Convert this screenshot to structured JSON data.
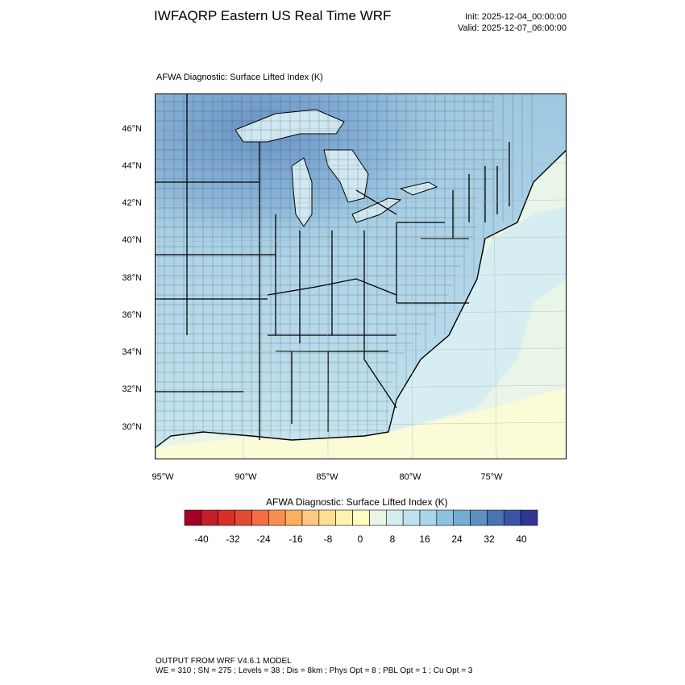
{
  "header": {
    "title": "IWFAQRP Eastern US Real Time WRF",
    "init": "Init: 2025-12-04_00:00:00",
    "valid": "Valid: 2025-12-07_06:00:00"
  },
  "map": {
    "field_label": "AFWA Diagnostic: Surface Lifted Index   (K)",
    "lat_labels": [
      "46°N",
      "44°N",
      "42°N",
      "40°N",
      "38°N",
      "36°N",
      "34°N",
      "32°N",
      "30°N"
    ],
    "lon_labels": [
      "95°W",
      "90°W",
      "85°W",
      "80°W",
      "75°W"
    ]
  },
  "colorbar": {
    "title": "AFWA Diagnostic: Surface Lifted Index  (K)",
    "tick_labels": [
      "-40",
      "-32",
      "-24",
      "-16",
      "-8",
      "0",
      "8",
      "16",
      "24",
      "32",
      "40"
    ],
    "colors": [
      "#a50026",
      "#c11f2a",
      "#d73027",
      "#e34a33",
      "#f46d43",
      "#f98e52",
      "#fdae61",
      "#fdc980",
      "#fee090",
      "#fff3b0",
      "#ffffbf",
      "#eaf6e4",
      "#d4eef0",
      "#bfe3ee",
      "#a9d6e8",
      "#8fc3dd",
      "#74add1",
      "#5e8fc1",
      "#4a73b2",
      "#3b55a4",
      "#313695"
    ]
  },
  "footer": {
    "line1": "OUTPUT FROM WRF V4.6.1 MODEL",
    "line2": "WE = 310 ; SN = 275 ; Levels = 38 ; Dis = 8km ; Phys Opt = 8 ; PBL Opt = 1 ; Cu Opt = 3"
  }
}
